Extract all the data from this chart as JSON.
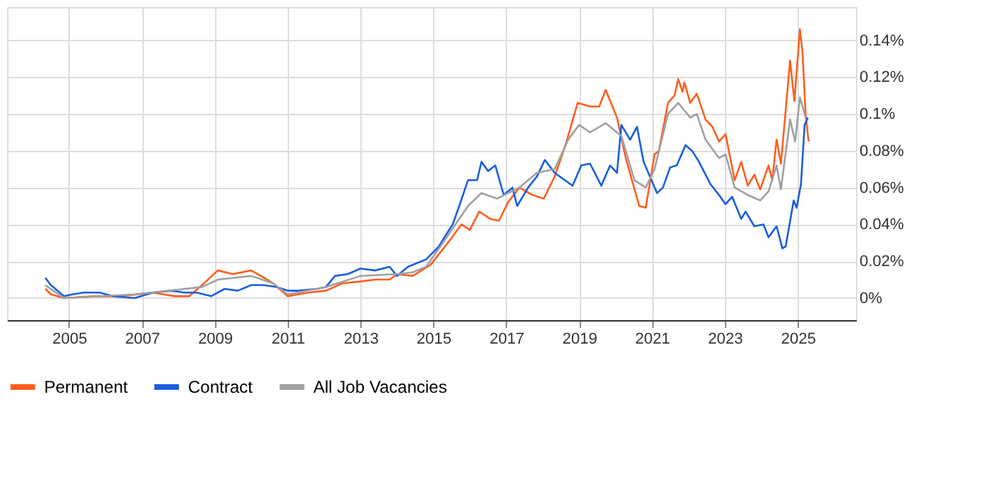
{
  "chart_data": {
    "type": "line",
    "xlim": [
      2003.3,
      2026.6
    ],
    "xticks": [
      2005,
      2007,
      2009,
      2011,
      2013,
      2015,
      2017,
      2019,
      2021,
      2023,
      2025
    ],
    "ylim": [
      -0.012,
      0.158
    ],
    "yticks": [
      {
        "value": 0,
        "label": "0%"
      },
      {
        "value": 0.02,
        "label": "0.02%"
      },
      {
        "value": 0.04,
        "label": "0.04%"
      },
      {
        "value": 0.06,
        "label": "0.06%"
      },
      {
        "value": 0.08,
        "label": "0.08%"
      },
      {
        "value": 0.1,
        "label": "0.1%"
      },
      {
        "value": 0.12,
        "label": "0.12%"
      },
      {
        "value": 0.14,
        "label": "0.14%"
      }
    ],
    "grid": true,
    "legend": "bottom",
    "marker": "none",
    "line_style": "solid",
    "series": [
      {
        "name": "Permanent",
        "color": "#ff5f1f",
        "x": [
          2004.35,
          2004.5,
          2004.86,
          2005.7,
          2006.4,
          2007.3,
          2007.9,
          2008.3,
          2008.65,
          2009.08,
          2009.5,
          2010.0,
          2010.35,
          2010.6,
          2011.0,
          2011.56,
          2012.05,
          2012.5,
          2013.0,
          2013.4,
          2013.8,
          2014.0,
          2014.43,
          2014.92,
          2015.4,
          2015.77,
          2016.0,
          2016.26,
          2016.56,
          2016.8,
          2017.05,
          2017.36,
          2017.72,
          2018.03,
          2018.33,
          2018.64,
          2018.96,
          2019.3,
          2019.55,
          2019.73,
          2020.04,
          2020.28,
          2020.65,
          2020.83,
          2021.07,
          2021.19,
          2021.44,
          2021.62,
          2021.72,
          2021.84,
          2021.89,
          2022.05,
          2022.23,
          2022.47,
          2022.66,
          2022.84,
          2023.02,
          2023.27,
          2023.45,
          2023.63,
          2023.81,
          2023.97,
          2024.2,
          2024.3,
          2024.42,
          2024.54,
          2024.67,
          2024.79,
          2024.91,
          2025.06,
          2025.13,
          2025.22,
          2025.3
        ],
        "values": [
          0.005,
          0.002,
          0.0,
          0.001,
          0.001,
          0.003,
          0.001,
          0.001,
          0.007,
          0.015,
          0.013,
          0.015,
          0.011,
          0.008,
          0.001,
          0.003,
          0.004,
          0.008,
          0.009,
          0.01,
          0.01,
          0.013,
          0.012,
          0.018,
          0.03,
          0.04,
          0.037,
          0.047,
          0.043,
          0.042,
          0.052,
          0.06,
          0.056,
          0.054,
          0.066,
          0.084,
          0.106,
          0.104,
          0.104,
          0.113,
          0.098,
          0.076,
          0.05,
          0.049,
          0.078,
          0.08,
          0.106,
          0.11,
          0.119,
          0.112,
          0.117,
          0.106,
          0.111,
          0.097,
          0.093,
          0.085,
          0.089,
          0.064,
          0.074,
          0.061,
          0.067,
          0.059,
          0.072,
          0.064,
          0.086,
          0.073,
          0.102,
          0.129,
          0.107,
          0.146,
          0.134,
          0.099,
          0.085
        ]
      },
      {
        "name": "Contract",
        "color": "#1a5fe0",
        "x": [
          2004.35,
          2004.5,
          2004.86,
          2005.1,
          2005.4,
          2005.84,
          2006.2,
          2006.8,
          2007.3,
          2007.8,
          2008.16,
          2008.5,
          2008.9,
          2009.27,
          2009.63,
          2010.0,
          2010.35,
          2010.7,
          2011.0,
          2011.3,
          2011.8,
          2012.05,
          2012.3,
          2012.65,
          2013.0,
          2013.4,
          2013.8,
          2014.0,
          2014.3,
          2014.8,
          2015.15,
          2015.4,
          2015.53,
          2015.71,
          2015.95,
          2016.2,
          2016.32,
          2016.5,
          2016.7,
          2016.93,
          2017.17,
          2017.3,
          2017.6,
          2017.84,
          2018.06,
          2018.33,
          2018.82,
          2019.06,
          2019.3,
          2019.61,
          2019.85,
          2020.04,
          2020.16,
          2020.4,
          2020.59,
          2020.77,
          2021.14,
          2021.3,
          2021.5,
          2021.68,
          2021.92,
          2022.1,
          2022.29,
          2022.6,
          2022.84,
          2023.02,
          2023.2,
          2023.45,
          2023.57,
          2023.81,
          2024.06,
          2024.2,
          2024.42,
          2024.58,
          2024.67,
          2024.89,
          2024.97,
          2025.09,
          2025.19,
          2025.28
        ],
        "values": [
          0.011,
          0.007,
          0.001,
          0.002,
          0.003,
          0.003,
          0.001,
          0.0,
          0.003,
          0.004,
          0.003,
          0.003,
          0.001,
          0.005,
          0.004,
          0.007,
          0.007,
          0.006,
          0.004,
          0.004,
          0.005,
          0.006,
          0.012,
          0.013,
          0.016,
          0.015,
          0.017,
          0.012,
          0.017,
          0.021,
          0.028,
          0.036,
          0.04,
          0.05,
          0.064,
          0.064,
          0.074,
          0.069,
          0.072,
          0.056,
          0.06,
          0.05,
          0.06,
          0.066,
          0.075,
          0.068,
          0.061,
          0.072,
          0.073,
          0.061,
          0.072,
          0.068,
          0.094,
          0.086,
          0.093,
          0.074,
          0.057,
          0.06,
          0.071,
          0.072,
          0.083,
          0.08,
          0.074,
          0.062,
          0.056,
          0.051,
          0.055,
          0.043,
          0.047,
          0.039,
          0.04,
          0.033,
          0.039,
          0.027,
          0.028,
          0.053,
          0.049,
          0.062,
          0.094,
          0.098
        ]
      },
      {
        "name": "All Job Vacancies",
        "color": "#a0a0a0",
        "x": [
          2004.35,
          2004.86,
          2006.8,
          2008.65,
          2009.08,
          2010.0,
          2010.6,
          2011.0,
          2012.05,
          2013.0,
          2014.0,
          2014.43,
          2014.8,
          2015.4,
          2015.95,
          2016.32,
          2016.75,
          2017.36,
          2017.84,
          2018.33,
          2018.7,
          2019.0,
          2019.3,
          2019.73,
          2020.16,
          2020.52,
          2020.83,
          2021.07,
          2021.44,
          2021.72,
          2022.05,
          2022.23,
          2022.47,
          2022.84,
          2023.02,
          2023.27,
          2023.63,
          2023.97,
          2024.2,
          2024.42,
          2024.54,
          2024.79,
          2024.93,
          2025.06,
          2025.22
        ],
        "values": [
          0.007,
          0.0,
          0.002,
          0.006,
          0.01,
          0.012,
          0.008,
          0.002,
          0.006,
          0.012,
          0.013,
          0.014,
          0.017,
          0.034,
          0.05,
          0.057,
          0.054,
          0.06,
          0.068,
          0.07,
          0.086,
          0.094,
          0.09,
          0.095,
          0.088,
          0.064,
          0.06,
          0.07,
          0.1,
          0.106,
          0.098,
          0.1,
          0.086,
          0.076,
          0.078,
          0.06,
          0.056,
          0.053,
          0.058,
          0.072,
          0.059,
          0.097,
          0.085,
          0.109,
          0.098
        ]
      }
    ]
  }
}
